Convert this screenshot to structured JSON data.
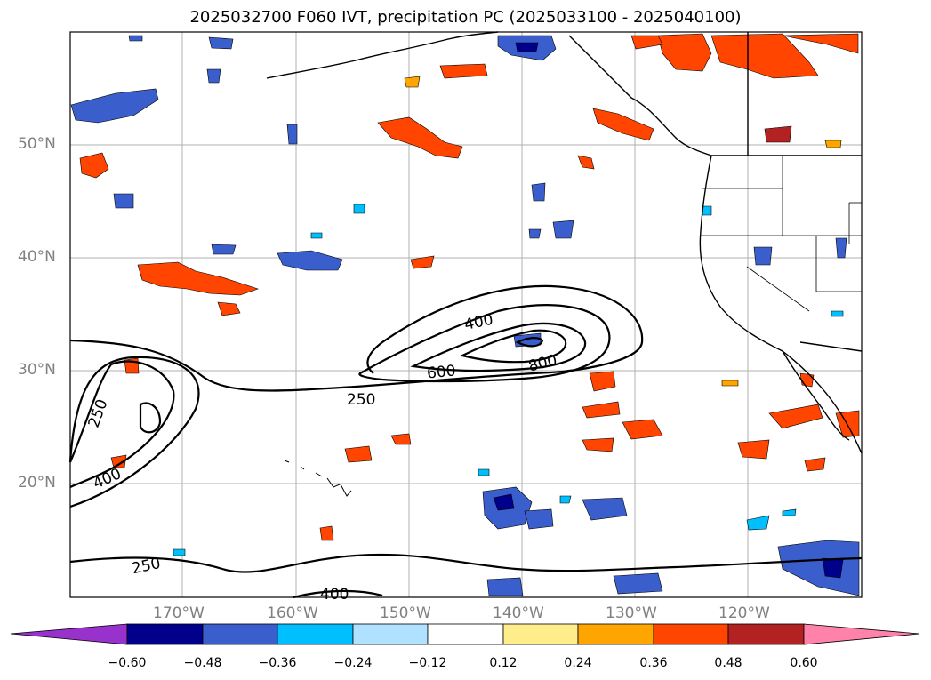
{
  "title": "2025032700 F060 IVT, precipitation PC (2025033100 - 2025040100)",
  "lat_labels": [
    "50°N",
    "40°N",
    "30°N",
    "20°N"
  ],
  "lon_labels": [
    "170°W",
    "160°W",
    "150°W",
    "140°W",
    "130°W",
    "120°W"
  ],
  "contour_labels": [
    "400",
    "600",
    "800",
    "250",
    "250",
    "400",
    "250",
    "400"
  ],
  "colorbar": {
    "ticks": [
      "−0.60",
      "−0.48",
      "−0.36",
      "−0.24",
      "−0.12",
      "0.12",
      "0.24",
      "0.36",
      "0.48",
      "0.60"
    ],
    "colors": [
      "#9932cc",
      "#00008b",
      "#3a5fcd",
      "#00bfff",
      "#b0e2ff",
      "#ffffff",
      "#ffec8b",
      "#ffa500",
      "#ff4500",
      "#b22222",
      "#ff82ab"
    ]
  }
}
